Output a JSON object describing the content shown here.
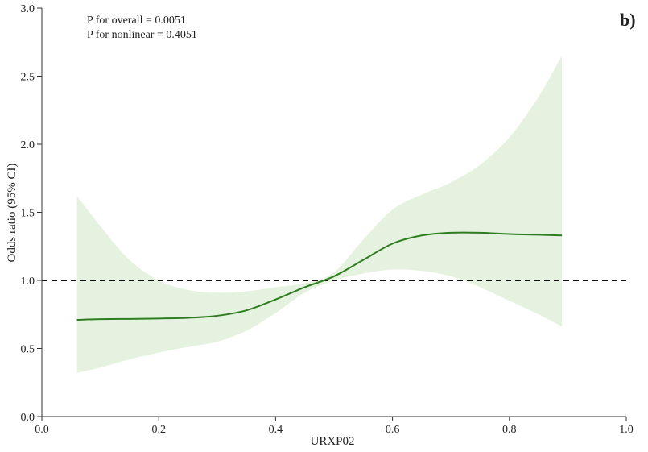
{
  "chart_data": {
    "type": "line",
    "panel_label": "b)",
    "xlabel": "URXP02",
    "ylabel": "Odds ratio (95% CI)",
    "xlim": [
      0.0,
      1.0
    ],
    "ylim": [
      0.0,
      3.0
    ],
    "x_ticks": [
      "0.0",
      "0.2",
      "0.4",
      "0.6",
      "0.8",
      "1.0"
    ],
    "y_ticks": [
      "0.0",
      "0.5",
      "1.0",
      "1.5",
      "2.0",
      "2.5",
      "3.0"
    ],
    "annotations": [
      "P for overall = 0.0051",
      "P for nonlinear = 0.4051"
    ],
    "reference_line": {
      "y": 1.0,
      "style": "dashed"
    },
    "colors": {
      "line": "#2e7d1f",
      "band": "#e6f2e0",
      "reference": "#111111"
    },
    "series": [
      {
        "kind": "estimate",
        "x": [
          0.06,
          0.1,
          0.15,
          0.2,
          0.25,
          0.3,
          0.35,
          0.4,
          0.45,
          0.5,
          0.55,
          0.6,
          0.65,
          0.7,
          0.75,
          0.8,
          0.85,
          0.89
        ],
        "y": [
          0.71,
          0.715,
          0.717,
          0.72,
          0.725,
          0.74,
          0.78,
          0.86,
          0.95,
          1.03,
          1.15,
          1.27,
          1.33,
          1.35,
          1.35,
          1.34,
          1.335,
          1.33
        ]
      },
      {
        "kind": "ci_upper",
        "x": [
          0.06,
          0.1,
          0.15,
          0.2,
          0.25,
          0.3,
          0.35,
          0.4,
          0.45,
          0.5,
          0.55,
          0.6,
          0.65,
          0.7,
          0.75,
          0.8,
          0.85,
          0.89
        ],
        "y": [
          1.62,
          1.4,
          1.15,
          1.0,
          0.93,
          0.91,
          0.92,
          0.95,
          0.98,
          1.06,
          1.3,
          1.52,
          1.63,
          1.72,
          1.85,
          2.05,
          2.35,
          2.65
        ]
      },
      {
        "kind": "ci_lower",
        "x": [
          0.06,
          0.1,
          0.15,
          0.2,
          0.25,
          0.3,
          0.35,
          0.4,
          0.45,
          0.5,
          0.55,
          0.6,
          0.65,
          0.7,
          0.75,
          0.8,
          0.85,
          0.89
        ],
        "y": [
          0.32,
          0.36,
          0.42,
          0.47,
          0.51,
          0.55,
          0.63,
          0.76,
          0.91,
          1.0,
          1.05,
          1.08,
          1.07,
          1.03,
          0.95,
          0.85,
          0.75,
          0.66
        ]
      }
    ]
  }
}
